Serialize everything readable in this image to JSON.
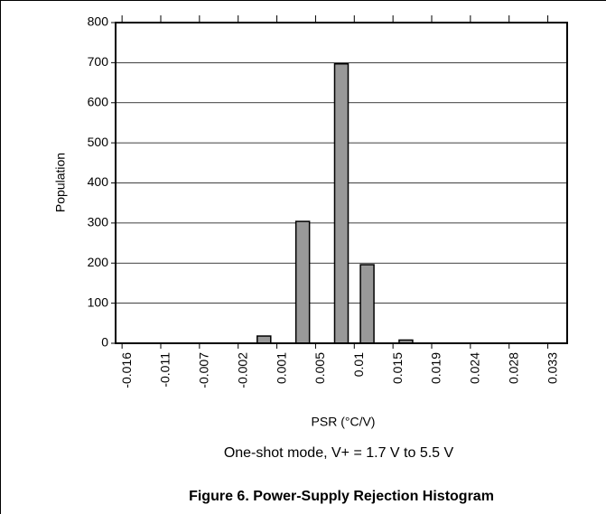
{
  "chart_data": {
    "type": "bar",
    "title": "Figure 6. Power-Supply Rejection Histogram",
    "subtitle": "One-shot mode, V+ = 1.7 V to 5.5 V",
    "x_label": "PSR (°C/V)",
    "y_label": "Population",
    "categories": [
      "-0.016",
      null,
      null,
      "-0.011",
      null,
      null,
      "-0.007",
      null,
      null,
      "-0.002",
      null,
      null,
      "0.001",
      null,
      null,
      "0.005",
      null,
      null,
      "0.01",
      null,
      null,
      "0.015",
      null,
      null,
      "0.019",
      null,
      null,
      "0.024",
      null,
      null,
      "0.028",
      null,
      null,
      "0.033",
      null
    ],
    "values": [
      0,
      0,
      0,
      0,
      0,
      0,
      0,
      0,
      0,
      0,
      0,
      18,
      0,
      0,
      304,
      0,
      0,
      697,
      0,
      196,
      0,
      0,
      8,
      0,
      0,
      0,
      0,
      0,
      0,
      0,
      0,
      0,
      0,
      0,
      0
    ],
    "color": "#999999",
    "ylim": [
      0,
      800
    ],
    "yticks": [
      0,
      100,
      200,
      300,
      400,
      500,
      600,
      700,
      800
    ],
    "grid": true
  }
}
